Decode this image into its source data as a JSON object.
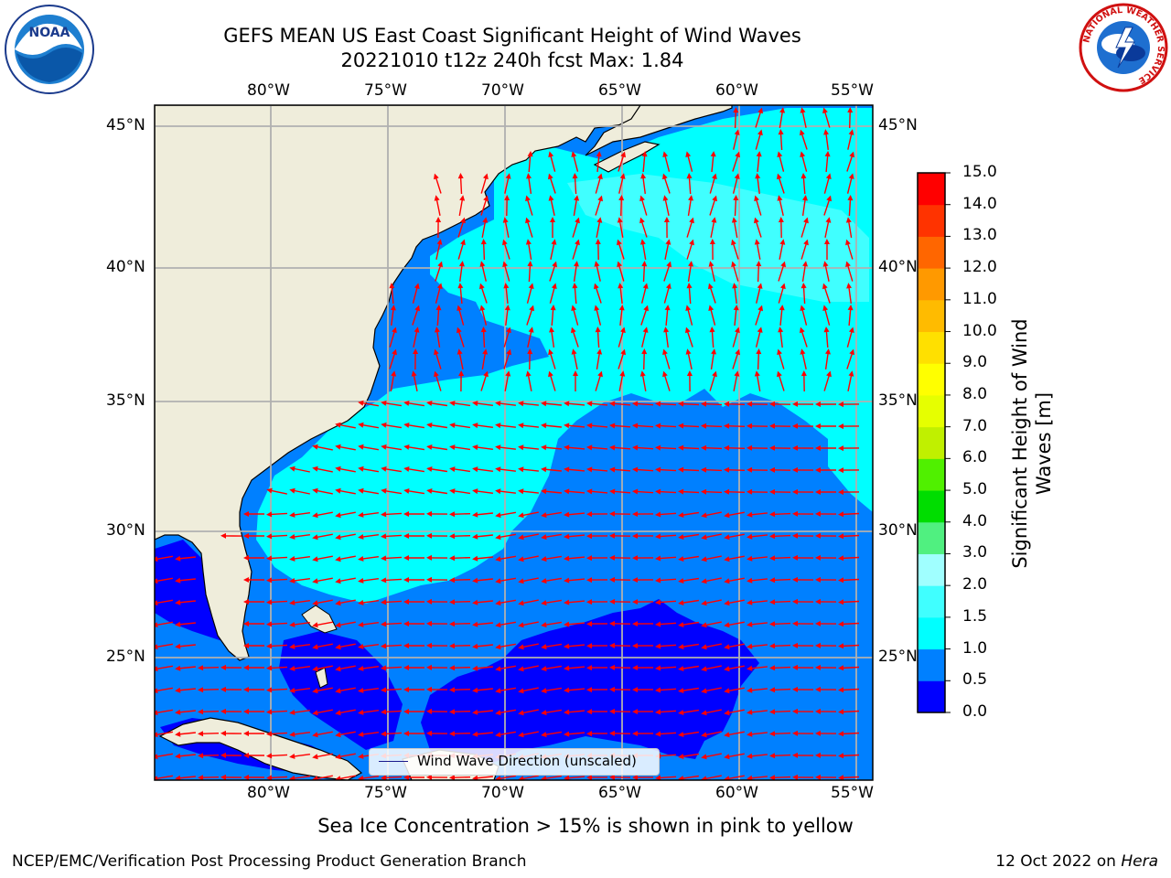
{
  "title": {
    "line1": "GEFS MEAN US East Coast Significant Height of Wind Waves",
    "line2": "20221010 t12z 240h fcst   Max: 1.84"
  },
  "map": {
    "lon_ticks": [
      "80°W",
      "75°W",
      "70°W",
      "65°W",
      "60°W",
      "55°W"
    ],
    "lat_ticks": [
      "45°N",
      "40°N",
      "35°N",
      "30°N",
      "25°N"
    ],
    "extent": {
      "lon": [
        -85,
        -54.5
      ],
      "lat": [
        20.5,
        46
      ]
    },
    "colors": {
      "land": "#efeddb",
      "coast": "#000000",
      "grid": "#b0b0b0",
      "arrow": "#ff0000"
    }
  },
  "legend": {
    "label": "Wind Wave Direction (unscaled)"
  },
  "colorbar": {
    "label_line1": "Significant Height of Wind",
    "label_line2": "Waves [m]",
    "ticks": [
      "15.0",
      "14.0",
      "13.0",
      "12.0",
      "11.0",
      "10.0",
      "9.0",
      "8.0",
      "7.0",
      "6.0",
      "5.0",
      "4.0",
      "3.0",
      "2.0",
      "1.5",
      "1.0",
      "0.5",
      "0.0"
    ],
    "levels": [
      0,
      0.5,
      1.0,
      1.5,
      2.0,
      3.0,
      4.0,
      5.0,
      6.0,
      7.0,
      8.0,
      9.0,
      10.0,
      11.0,
      12.0,
      13.0,
      14.0,
      15.0
    ],
    "colors": [
      "#0000ff",
      "#0080ff",
      "#00ffff",
      "#40ffff",
      "#a0ffff",
      "#50f080",
      "#00dd00",
      "#50f000",
      "#c0f000",
      "#e6ff00",
      "#ffff00",
      "#ffe000",
      "#ffbb00",
      "#ff9900",
      "#ff6600",
      "#ff3300",
      "#ff0000"
    ]
  },
  "footer": {
    "note": "Sea Ice Concentration > 15% is shown in pink to yellow",
    "left": "NCEP/EMC/Verification Post Processing Product Generation Branch",
    "right_date": "12 Oct 2022 on ",
    "right_host": "Hera"
  },
  "logos": {
    "left": "NOAA",
    "right": "NATIONAL WEATHER SERVICE"
  }
}
